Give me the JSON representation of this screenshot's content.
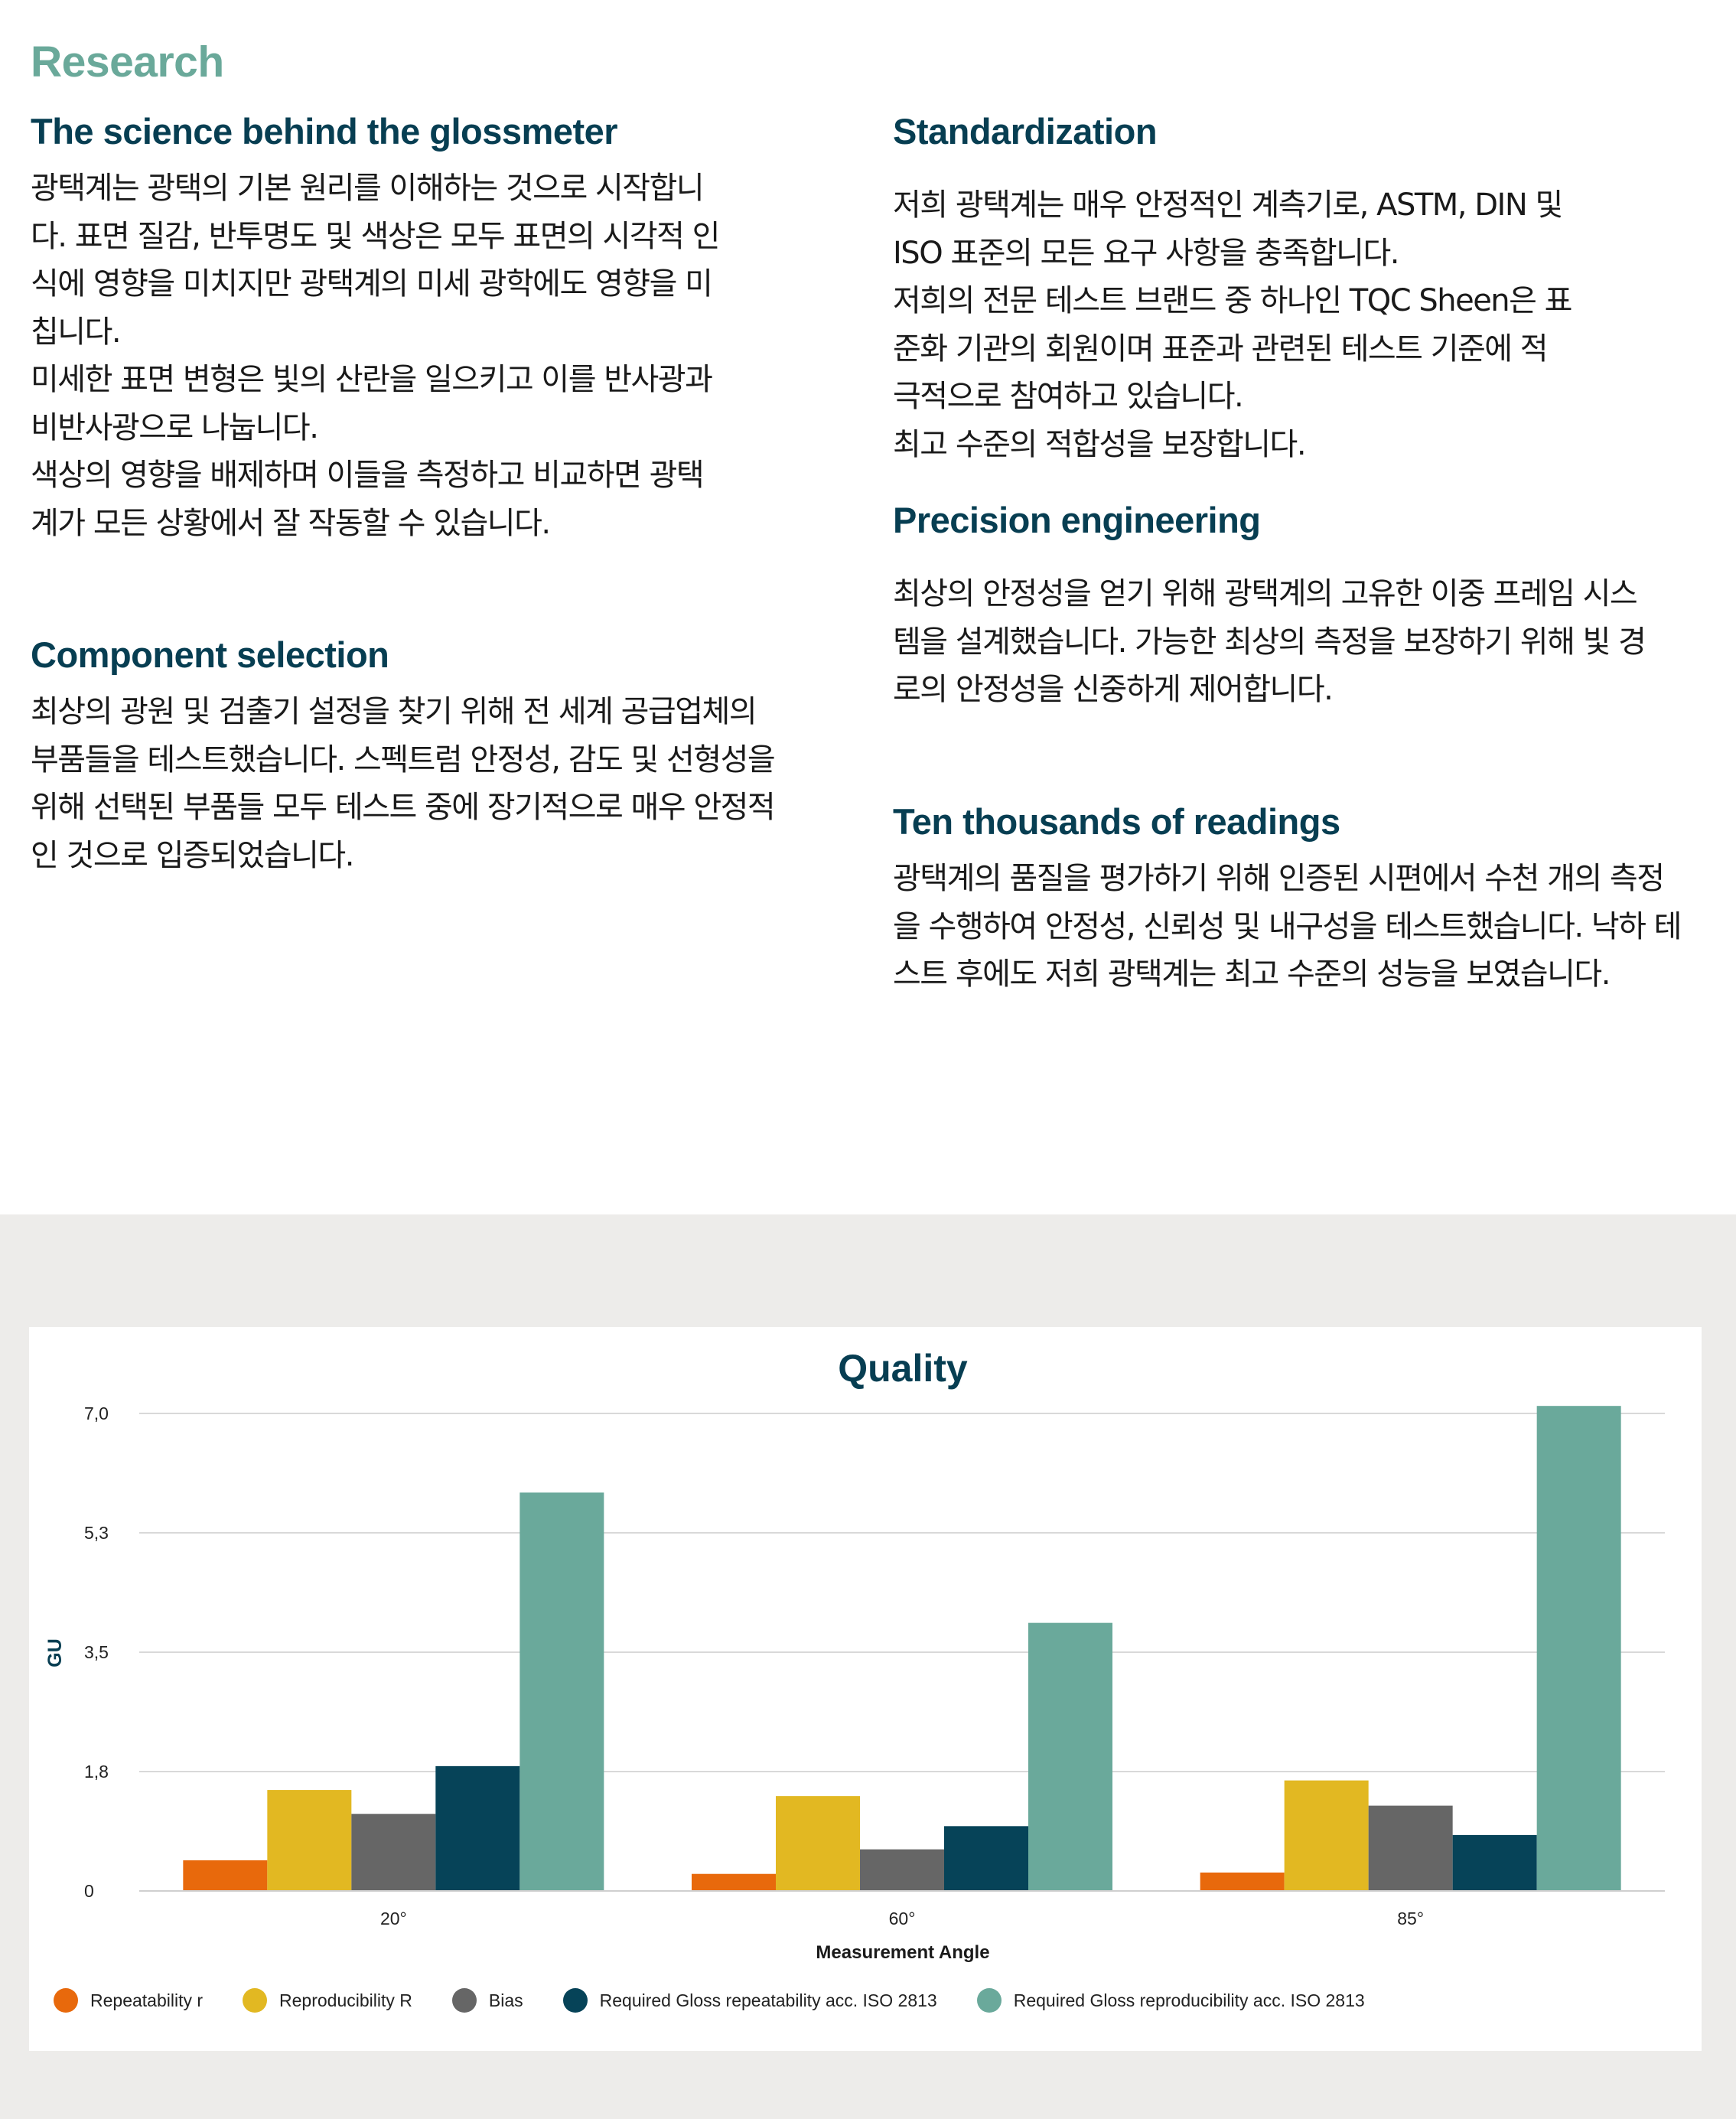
{
  "header": {
    "section_label": "Research"
  },
  "left_column": {
    "science": {
      "title": "The science behind the glossmeter",
      "body": "광택계는 광택의 기본 원리를 이해하는 것으로 시작합니\n다. 표면 질감, 반투명도 및 색상은 모두 표면의 시각적 인\n식에 영향을 미치지만 광택계의 미세 광학에도 영향을 미\n칩니다.\n미세한 표면 변형은 빛의 산란을 일으키고 이를 반사광과\n비반사광으로 나눕니다.\n색상의 영향을 배제하며 이들을 측정하고 비교하면 광택\n계가 모든 상황에서 잘 작동할 수 있습니다."
    },
    "component": {
      "title": "Component selection",
      "body": "최상의 광원 및 검출기 설정을 찾기 위해 전 세계 공급업체의\n부품들을 테스트했습니다. 스펙트럼 안정성, 감도 및 선형성을\n위해 선택된 부품들 모두 테스트 중에 장기적으로 매우 안정적\n인 것으로 입증되었습니다."
    }
  },
  "right_column": {
    "standardization": {
      "title": "Standardization",
      "body": "저희 광택계는 매우 안정적인 계측기로, ASTM, DIN 및\nISO 표준의 모든 요구 사항을 충족합니다.\n저희의 전문 테스트 브랜드 중 하나인 TQC Sheen은 표\n준화 기관의 회원이며 표준과 관련된 테스트 기준에 적\n극적으로 참여하고 있습니다.\n최고 수준의 적합성을 보장합니다."
    },
    "precision": {
      "title": "Precision engineering",
      "body": "최상의 안정성을 얻기 위해 광택계의 고유한 이중 프레임 시스\n템을 설계했습니다. 가능한 최상의 측정을 보장하기 위해 빛 경\n로의 안정성을 신중하게 제어합니다."
    },
    "readings": {
      "title": "Ten thousands of readings",
      "body": "광택계의 품질을 평가하기 위해 인증된 시편에서 수천 개의 측정\n을 수행하여 안정성, 신뢰성 및 내구성을 테스트했습니다. 낙하 테\n스트 후에도 저희 광택계는 최고 수준의 성능을 보였습니다."
    }
  },
  "chart_data": {
    "type": "bar",
    "title": "Quality",
    "xlabel": "Measurement Angle",
    "ylabel": "GU",
    "categories": [
      "20°",
      "60°",
      "85°"
    ],
    "ylim": [
      0,
      7.0
    ],
    "ytick_values": [
      0,
      1.75,
      3.5,
      5.25,
      7.0
    ],
    "ytick_labels": [
      "0",
      "1,8",
      "3,5",
      "5,3",
      "7,0"
    ],
    "grid": true,
    "legend_position": "bottom",
    "series": [
      {
        "name": "Repeatability r",
        "color": "#e8690c",
        "values": [
          0.45,
          0.25,
          0.27
        ]
      },
      {
        "name": "Reproducibility R",
        "color": "#e2b822",
        "values": [
          1.48,
          1.39,
          1.62
        ]
      },
      {
        "name": "Bias",
        "color": "#666666",
        "values": [
          1.13,
          0.61,
          1.25
        ]
      },
      {
        "name": "Required Gloss repeatability acc. ISO 2813",
        "color": "#064358",
        "values": [
          1.83,
          0.95,
          0.82
        ]
      },
      {
        "name": "Required Gloss reproducibility acc. ISO 2813",
        "color": "#6aa99b",
        "values": [
          5.84,
          3.93,
          7.11
        ]
      }
    ]
  }
}
